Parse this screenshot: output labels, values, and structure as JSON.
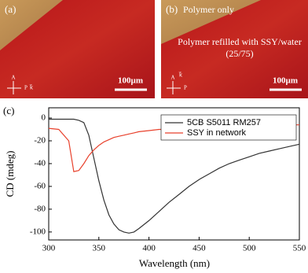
{
  "panels": [
    {
      "label": "(a)",
      "scale_bar": "100µm",
      "axes": [
        "A",
        "P",
        "k⃗"
      ]
    },
    {
      "label": "(b)",
      "region_top": "Polymer only",
      "region_bottom": "Polymer refilled with SSY/water (25/75)",
      "scale_bar": "100µm",
      "axes": [
        "A",
        "P",
        "k⃗"
      ]
    }
  ],
  "chart_data": {
    "type": "line",
    "panel_label": "(c)",
    "x_label": "Wavelength (nm)",
    "y_label": "CD (mdeg)",
    "x": [
      300,
      310,
      320,
      325,
      330,
      335,
      340,
      345,
      350,
      355,
      360,
      365,
      370,
      375,
      380,
      385,
      390,
      400,
      410,
      420,
      430,
      440,
      450,
      460,
      470,
      480,
      490,
      500,
      510,
      520,
      530,
      540,
      550
    ],
    "series": [
      {
        "name": "5CB S5011 RM257",
        "color": "#333333",
        "values": [
          -1,
          -1,
          -1,
          -1,
          -2,
          -4,
          -15,
          -35,
          -55,
          -72,
          -85,
          -93,
          -98,
          -100,
          -101,
          -100,
          -97,
          -90,
          -82,
          -74,
          -67,
          -60,
          -54,
          -49,
          -44,
          -40,
          -37,
          -34,
          -31,
          -29,
          -27,
          -25,
          -23
        ]
      },
      {
        "name": "SSY in network",
        "color": "#e8412c",
        "values": [
          -9,
          -10,
          -20,
          -47,
          -46,
          -40,
          -33,
          -28,
          -24,
          -21,
          -19,
          -17,
          -16,
          -15,
          -14,
          -13,
          -12,
          -11,
          -10,
          -10,
          -9,
          -8,
          -8,
          -7,
          -7,
          -7,
          -6,
          -6,
          -6,
          -6,
          -6,
          -6,
          -6
        ]
      }
    ],
    "xlim": [
      300,
      550
    ],
    "xticks": [
      300,
      350,
      400,
      450,
      500,
      550
    ],
    "ylim": [
      -107,
      9
    ],
    "yticks": [
      -100,
      -80,
      -60,
      -40,
      -20,
      0
    ]
  }
}
